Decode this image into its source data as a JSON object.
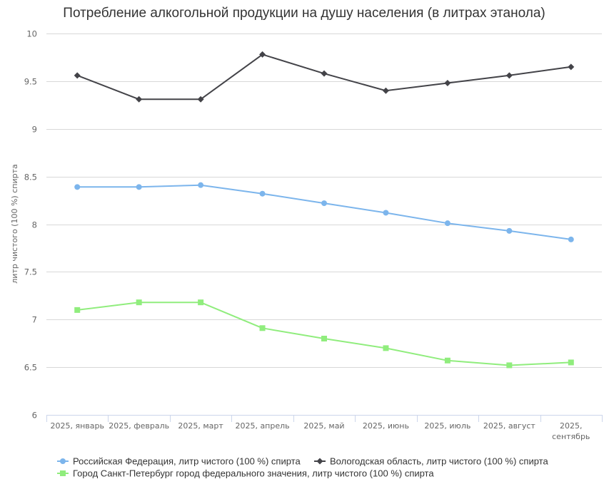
{
  "chart_data": {
    "type": "line",
    "title": "Потребление алкогольной продукции на душу населения (в литрах этанола)",
    "xlabel": "",
    "ylabel": "литр чистого (100 %) спирта",
    "ylim": [
      6,
      10
    ],
    "yticks": [
      "6",
      "6.5",
      "7",
      "7.5",
      "8",
      "8.5",
      "9",
      "9.5",
      "10"
    ],
    "ytick_values": [
      6,
      6.5,
      7,
      7.5,
      8,
      8.5,
      9,
      9.5,
      10
    ],
    "grid": true,
    "legend_position": "bottom-left",
    "categories": [
      [
        "2025, январь"
      ],
      [
        "2025, февраль"
      ],
      [
        "2025, март"
      ],
      [
        "2025, апрель"
      ],
      [
        "2025, май"
      ],
      [
        "2025, июнь"
      ],
      [
        "2025, июль"
      ],
      [
        "2025, август"
      ],
      [
        "2025,",
        "сентябрь"
      ]
    ],
    "series": [
      {
        "name": "Российская Федерация, литр чистого (100 %) спирта",
        "color": "#7cb5ec",
        "marker": "circle",
        "values": [
          8.39,
          8.39,
          8.41,
          8.32,
          8.22,
          8.12,
          8.01,
          7.93,
          7.84
        ]
      },
      {
        "name": "Вологодская область, литр чистого (100 %) спирта",
        "color": "#434348",
        "marker": "diamond",
        "values": [
          9.56,
          9.31,
          9.31,
          9.78,
          9.58,
          9.4,
          9.48,
          9.56,
          9.65
        ]
      },
      {
        "name": "Город Санкт-Петербург город федерального значения, литр чистого (100 %) спирта",
        "color": "#90ed7d",
        "marker": "square",
        "values": [
          7.1,
          7.18,
          7.18,
          6.91,
          6.8,
          6.7,
          6.57,
          6.52,
          6.55
        ]
      }
    ]
  }
}
